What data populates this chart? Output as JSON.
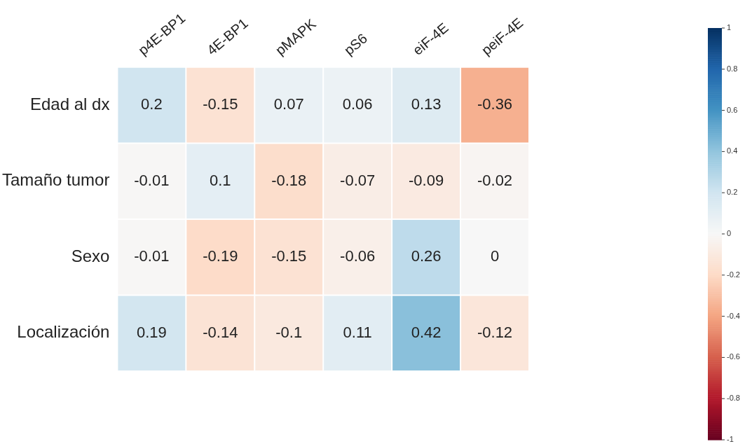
{
  "chart_data": {
    "type": "heatmap",
    "categories": [
      "p4E-BP1",
      "4E-BP1",
      "pMAPK",
      "pS6",
      "eiF-4E",
      "peiF-4E"
    ],
    "y_categories": [
      "Edad al dx",
      "Tamaño tumor",
      "Sexo",
      "Localización"
    ],
    "cells": [
      [
        0.2,
        -0.15,
        0.07,
        0.06,
        0.13,
        -0.36
      ],
      [
        -0.01,
        0.1,
        -0.18,
        -0.07,
        -0.09,
        -0.02
      ],
      [
        -0.01,
        -0.19,
        -0.15,
        -0.06,
        0.26,
        0
      ],
      [
        0.19,
        -0.14,
        -0.1,
        0.11,
        0.42,
        -0.12
      ]
    ],
    "clim": [
      -1,
      1
    ],
    "cticks": [
      -1,
      -0.8,
      -0.6,
      -0.4,
      -0.2,
      0,
      0.2,
      0.4,
      0.6,
      0.8,
      1
    ],
    "data_labels": true
  }
}
